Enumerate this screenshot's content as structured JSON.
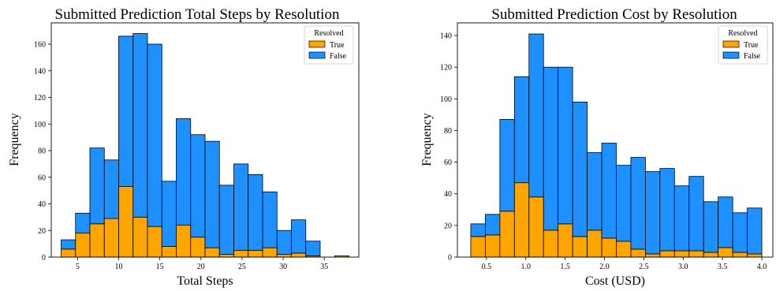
{
  "charts": [
    {
      "type": "bar",
      "stacked": true,
      "title": "Submitted Prediction Total Steps by Resolution",
      "xlabel": "Total Steps",
      "ylabel": "Frequency",
      "xlim": [
        1.8,
        39.2
      ],
      "ylim": [
        0,
        176
      ],
      "xticks": [
        5,
        10,
        15,
        20,
        25,
        30,
        35
      ],
      "yticks": [
        0,
        20,
        40,
        60,
        80,
        100,
        120,
        140,
        160
      ],
      "bin_edges": [
        3,
        4.75,
        6.5,
        8.25,
        10,
        11.75,
        13.5,
        15.25,
        17,
        18.75,
        20.5,
        22.25,
        24,
        25.75,
        27.5,
        29.25,
        31,
        32.75,
        34.5,
        36.25,
        38
      ],
      "series": [
        {
          "name": "True",
          "color": "#FFA500",
          "values": [
            6,
            18,
            25,
            29,
            53,
            30,
            23,
            8,
            24,
            15,
            7,
            2,
            5,
            5,
            7,
            2,
            3,
            1,
            0,
            1
          ]
        },
        {
          "name": "False",
          "color": "#1E90FF",
          "values": [
            7,
            15,
            57,
            44,
            113,
            138,
            137,
            49,
            80,
            77,
            80,
            52,
            65,
            57,
            42,
            18,
            25,
            11,
            0,
            0
          ]
        }
      ],
      "legend": {
        "title": "Resolved",
        "position": "upper right"
      },
      "grid": false
    },
    {
      "type": "bar",
      "stacked": true,
      "title": "Submitted Prediction Cost by Resolution",
      "xlabel": "Cost (USD)",
      "ylabel": "Frequency",
      "xlim": [
        0.13,
        4.14
      ],
      "ylim": [
        0,
        148
      ],
      "xticks": [
        0.5,
        1.0,
        1.5,
        2.0,
        2.5,
        3.0,
        3.5,
        4.0
      ],
      "xtick_labels": [
        "0.5",
        "1.0",
        "1.5",
        "2.0",
        "2.5",
        "3.0",
        "3.5",
        "4.0"
      ],
      "yticks": [
        0,
        20,
        40,
        60,
        80,
        100,
        120,
        140
      ],
      "bin_edges": [
        0.3,
        0.485,
        0.67,
        0.855,
        1.04,
        1.225,
        1.41,
        1.595,
        1.78,
        1.965,
        2.15,
        2.335,
        2.52,
        2.705,
        2.89,
        3.075,
        3.26,
        3.445,
        3.63,
        3.815,
        4.0
      ],
      "series": [
        {
          "name": "True",
          "color": "#FFA500",
          "values": [
            13,
            14,
            29,
            47,
            38,
            17,
            21,
            13,
            17,
            12,
            10,
            5,
            2,
            4,
            4,
            4,
            3,
            6,
            3,
            2
          ]
        },
        {
          "name": "False",
          "color": "#1E90FF",
          "values": [
            8,
            13,
            58,
            67,
            103,
            103,
            99,
            85,
            49,
            60,
            48,
            58,
            52,
            52,
            41,
            47,
            32,
            32,
            25,
            29
          ]
        }
      ],
      "legend": {
        "title": "Resolved",
        "position": "upper right"
      },
      "grid": false
    }
  ]
}
